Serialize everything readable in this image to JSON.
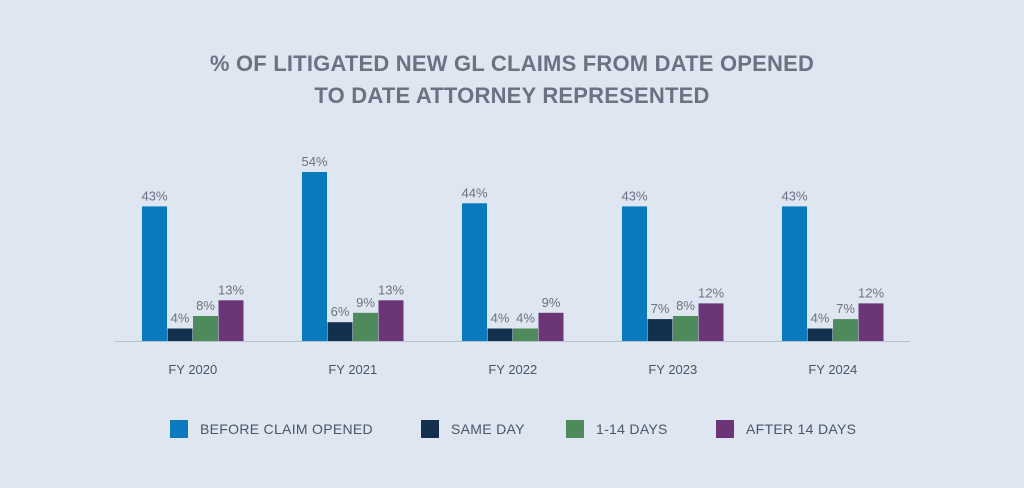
{
  "title_lines": [
    "% OF LITIGATED NEW GL CLAIMS FROM DATE OPENED",
    "TO DATE ATTORNEY REPRESENTED"
  ],
  "colors": {
    "background": "#dde6f1",
    "before_claim_opened": "#0a7abf",
    "same_day": "#13314f",
    "days_1_14": "#4f8a5c",
    "after_14_days": "#6b3578"
  },
  "chart_data": {
    "type": "bar",
    "title": "% OF LITIGATED NEW GL CLAIMS FROM DATE OPENED TO DATE ATTORNEY REPRESENTED",
    "categories": [
      "FY 2020",
      "FY 2021",
      "FY 2022",
      "FY 2023",
      "FY 2024"
    ],
    "series": [
      {
        "name": "BEFORE CLAIM OPENED",
        "values": [
          43,
          54,
          44,
          43,
          43
        ],
        "labels": [
          "43%",
          "54%",
          "44%",
          "43%",
          "43%"
        ]
      },
      {
        "name": "SAME DAY",
        "values": [
          4,
          6,
          4,
          7,
          4
        ],
        "labels": [
          "4%",
          "6%",
          "4%",
          "7%",
          "4%"
        ]
      },
      {
        "name": "1-14 DAYS",
        "values": [
          8,
          9,
          4,
          8,
          7
        ],
        "labels": [
          "8%",
          "9%",
          "4%",
          "8%",
          "7%"
        ]
      },
      {
        "name": "AFTER 14 DAYS",
        "values": [
          13,
          13,
          9,
          12,
          12
        ],
        "labels": [
          "13%",
          "13%",
          "9%",
          "12%",
          "12%"
        ]
      }
    ],
    "xlabel": "",
    "ylabel": "",
    "ylim": [
      0,
      54
    ],
    "grid": false,
    "legend_position": "bottom"
  }
}
